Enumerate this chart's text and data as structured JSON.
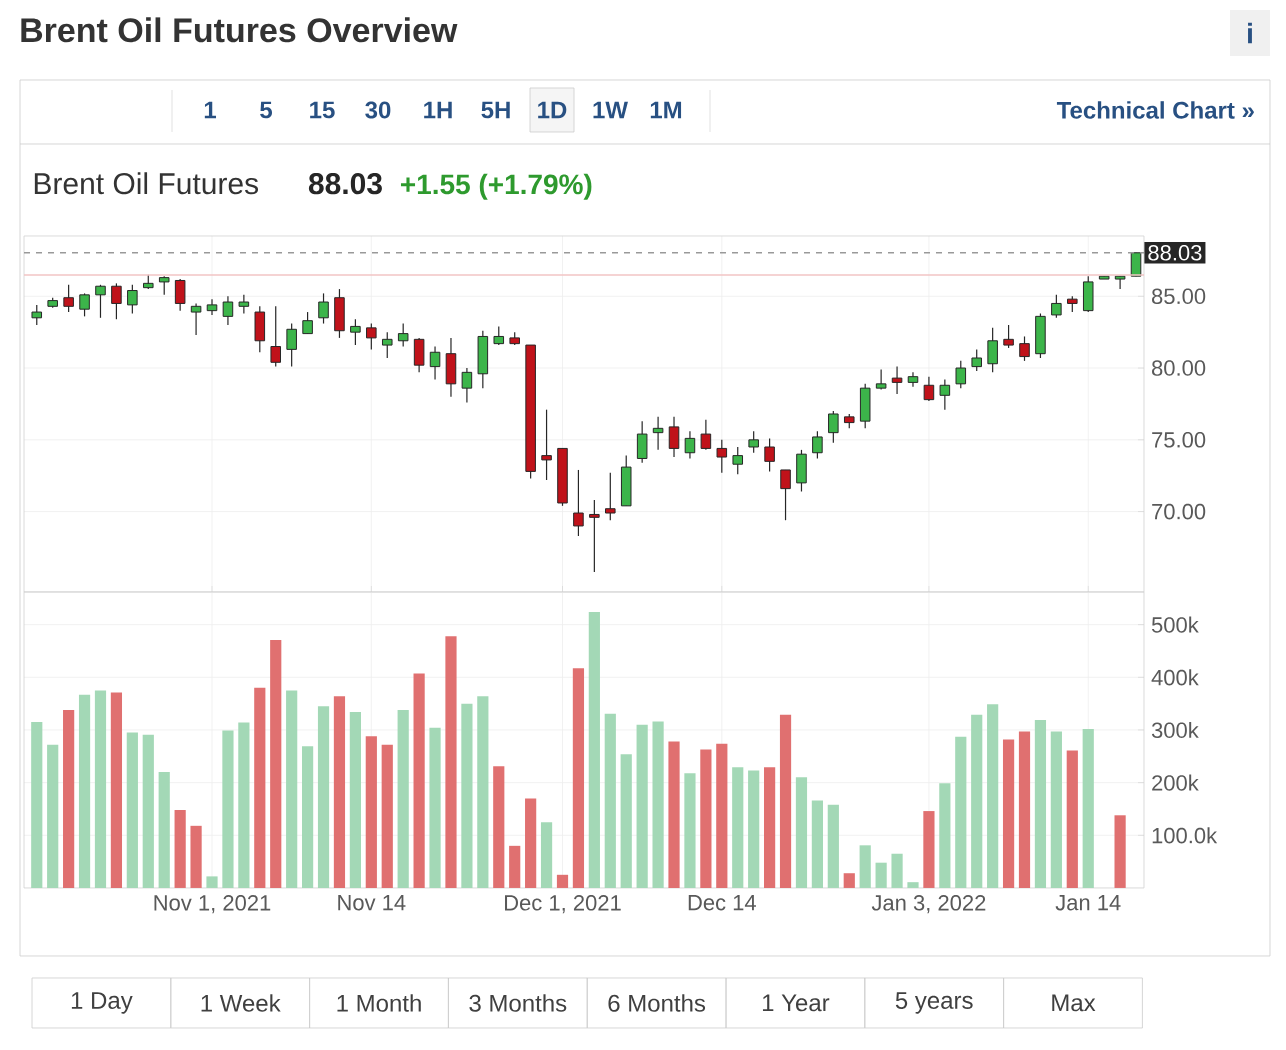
{
  "chart_data": [
    {
      "type": "candlestick",
      "title": "Brent Oil Futures Overview",
      "subtitle": "Brent Oil Futures",
      "annotations": [
        "88.03",
        "+1.55 (+1.79%)"
      ],
      "categories": [
        null,
        null,
        null,
        null,
        null,
        null,
        null,
        null,
        null,
        null,
        null,
        null,
        null,
        null,
        null,
        null,
        null,
        null,
        null,
        null,
        null,
        null,
        null,
        null,
        null,
        null,
        null,
        null,
        null,
        null,
        null,
        null,
        null,
        null,
        null,
        null,
        null,
        null,
        null,
        null,
        null,
        null,
        null,
        null,
        null,
        null,
        null,
        null,
        null,
        null,
        null,
        null,
        null,
        null,
        null,
        null,
        null,
        null,
        null,
        null,
        null,
        null,
        null,
        null,
        null,
        null,
        null,
        null,
        null,
        null
      ],
      "ohlc": [
        [
          83.5,
          84.4,
          83.0,
          83.9
        ],
        [
          84.3,
          84.9,
          84.2,
          84.7
        ],
        [
          84.9,
          85.8,
          83.9,
          84.3
        ],
        [
          84.1,
          85.2,
          83.6,
          85.1
        ],
        [
          85.1,
          85.8,
          83.5,
          85.7
        ],
        [
          85.7,
          85.9,
          83.4,
          84.5
        ],
        [
          84.4,
          85.8,
          83.8,
          85.4
        ],
        [
          85.6,
          86.5,
          85.5,
          85.9
        ],
        [
          86.0,
          86.4,
          85.1,
          86.3
        ],
        [
          86.1,
          86.2,
          84.0,
          84.5
        ],
        [
          83.9,
          84.5,
          82.3,
          84.3
        ],
        [
          84.0,
          84.8,
          83.7,
          84.4
        ],
        [
          83.6,
          85.0,
          83.0,
          84.6
        ],
        [
          84.3,
          85.1,
          83.8,
          84.6
        ],
        [
          83.9,
          84.3,
          81.1,
          81.9
        ],
        [
          81.5,
          84.3,
          80.1,
          80.4
        ],
        [
          81.3,
          83.1,
          80.1,
          82.7
        ],
        [
          82.4,
          83.9,
          82.4,
          83.3
        ],
        [
          83.5,
          85.2,
          83.1,
          84.6
        ],
        [
          84.9,
          85.5,
          82.1,
          82.6
        ],
        [
          82.5,
          83.4,
          81.6,
          82.9
        ],
        [
          82.8,
          83.1,
          81.3,
          82.1
        ],
        [
          81.6,
          82.5,
          80.7,
          82.0
        ],
        [
          81.9,
          83.1,
          81.5,
          82.4
        ],
        [
          82.0,
          82.1,
          79.7,
          80.2
        ],
        [
          80.1,
          81.5,
          79.2,
          81.1
        ],
        [
          81.0,
          82.1,
          78.0,
          78.9
        ],
        [
          78.6,
          80.0,
          77.6,
          79.7
        ],
        [
          79.6,
          82.6,
          78.6,
          82.2
        ],
        [
          81.7,
          82.9,
          81.6,
          82.2
        ],
        [
          82.1,
          82.5,
          81.6,
          81.7
        ],
        [
          81.6,
          81.6,
          72.3,
          72.8
        ],
        [
          73.9,
          77.1,
          72.2,
          73.6
        ],
        [
          74.4,
          74.4,
          70.4,
          70.6
        ],
        [
          69.9,
          72.9,
          68.3,
          69.0
        ],
        [
          69.8,
          70.8,
          65.8,
          69.6
        ],
        [
          70.2,
          72.7,
          69.4,
          69.9
        ],
        [
          70.4,
          73.9,
          70.4,
          73.1
        ],
        [
          73.7,
          76.3,
          73.4,
          75.4
        ],
        [
          75.5,
          76.6,
          74.3,
          75.8
        ],
        [
          75.9,
          76.6,
          73.8,
          74.4
        ],
        [
          74.1,
          75.6,
          73.7,
          75.1
        ],
        [
          75.4,
          76.4,
          74.3,
          74.4
        ],
        [
          74.4,
          75.0,
          72.7,
          73.8
        ],
        [
          73.3,
          74.5,
          72.6,
          73.9
        ],
        [
          74.5,
          75.6,
          74.1,
          75.0
        ],
        [
          74.5,
          75.1,
          72.8,
          73.5
        ],
        [
          72.9,
          72.9,
          69.4,
          71.6
        ],
        [
          72.0,
          74.3,
          71.4,
          74.0
        ],
        [
          74.1,
          75.6,
          73.7,
          75.2
        ],
        [
          75.5,
          77.0,
          74.8,
          76.8
        ],
        [
          76.6,
          76.8,
          75.8,
          76.2
        ],
        [
          76.3,
          78.9,
          75.8,
          78.6
        ],
        [
          78.6,
          79.9,
          78.5,
          78.9
        ],
        [
          79.3,
          80.1,
          78.2,
          79.0
        ],
        [
          79.0,
          79.7,
          78.7,
          79.4
        ],
        [
          78.8,
          79.4,
          77.7,
          77.8
        ],
        [
          78.1,
          79.2,
          77.1,
          78.8
        ],
        [
          78.9,
          80.5,
          78.6,
          80.0
        ],
        [
          80.1,
          81.3,
          79.8,
          80.7
        ],
        [
          80.3,
          82.8,
          79.7,
          81.9
        ],
        [
          82.0,
          83.0,
          81.4,
          81.6
        ],
        [
          81.7,
          82.2,
          80.5,
          80.8
        ],
        [
          81.0,
          83.8,
          80.7,
          83.6
        ],
        [
          83.7,
          85.1,
          83.5,
          84.5
        ],
        [
          84.8,
          85.0,
          83.9,
          84.5
        ],
        [
          84.0,
          86.4,
          83.9,
          86.0
        ],
        [
          86.2,
          86.4,
          86.2,
          86.4
        ],
        [
          86.2,
          86.4,
          85.5,
          86.4
        ],
        [
          86.4,
          88.03,
          86.4,
          88.03
        ]
      ],
      "colors": [
        "#3cb54a",
        "#3cb54a",
        "#c0121a",
        "#3cb54a",
        "#3cb54a",
        "#c0121a",
        "#3cb54a",
        "#3cb54a",
        "#3cb54a",
        "#c0121a",
        "#3cb54a",
        "#3cb54a",
        "#3cb54a",
        "#3cb54a",
        "#c0121a",
        "#c0121a",
        "#3cb54a",
        "#3cb54a",
        "#3cb54a",
        "#c0121a",
        "#3cb54a",
        "#c0121a",
        "#3cb54a",
        "#3cb54a",
        "#c0121a",
        "#3cb54a",
        "#c0121a",
        "#3cb54a",
        "#3cb54a",
        "#3cb54a",
        "#c0121a",
        "#c0121a",
        "#c0121a",
        "#c0121a",
        "#c0121a",
        "#c0121a",
        "#c0121a",
        "#3cb54a",
        "#3cb54a",
        "#3cb54a",
        "#c0121a",
        "#3cb54a",
        "#c0121a",
        "#c0121a",
        "#3cb54a",
        "#3cb54a",
        "#c0121a",
        "#c0121a",
        "#3cb54a",
        "#3cb54a",
        "#3cb54a",
        "#c0121a",
        "#3cb54a",
        "#3cb54a",
        "#c0121a",
        "#3cb54a",
        "#c0121a",
        "#3cb54a",
        "#3cb54a",
        "#3cb54a",
        "#3cb54a",
        "#c0121a",
        "#c0121a",
        "#3cb54a",
        "#3cb54a",
        "#c0121a",
        "#3cb54a",
        "#3cb54a",
        "#3cb54a",
        "#3cb54a"
      ],
      "ylim": [
        64.4,
        89.2
      ],
      "yticks": [
        {
          "value": 70,
          "label": "70.00"
        },
        {
          "value": 75,
          "label": "75.00"
        },
        {
          "value": 80,
          "label": "80.00"
        },
        {
          "value": 85,
          "label": "85.00"
        }
      ],
      "ref_lines": [
        {
          "axis": "y",
          "value": 88.03,
          "label": "88.03",
          "color": "#999999",
          "line_style": "dashed"
        },
        {
          "axis": "y",
          "value": 86.48,
          "color": "#f2c4c4",
          "line_style": "solid"
        }
      ],
      "grid": true,
      "tick_labels": "y"
    },
    {
      "type": "bar",
      "categories": [
        null,
        null,
        null,
        null,
        null,
        null,
        null,
        null,
        null,
        null,
        null,
        "Nov 1, 2021",
        null,
        null,
        null,
        null,
        null,
        null,
        null,
        null,
        null,
        "Nov 14",
        null,
        null,
        null,
        null,
        null,
        null,
        null,
        null,
        null,
        null,
        null,
        "Dec 1, 2021",
        null,
        null,
        null,
        null,
        null,
        null,
        null,
        null,
        null,
        "Dec 14",
        null,
        null,
        null,
        null,
        null,
        null,
        null,
        null,
        null,
        null,
        null,
        null,
        "Jan 3, 2022",
        null,
        null,
        null,
        null,
        null,
        null,
        null,
        null,
        null,
        "Jan 14",
        null,
        null,
        null
      ],
      "values": [
        315000,
        272000,
        338000,
        367000,
        375000,
        371000,
        295000,
        291000,
        220000,
        148000,
        118000,
        22000,
        299000,
        314000,
        380000,
        471000,
        375000,
        269000,
        345000,
        364000,
        334000,
        288000,
        272000,
        338000,
        407000,
        304000,
        478000,
        350000,
        364000,
        231000,
        80000,
        170000,
        125000,
        25000,
        417000,
        524000,
        331000,
        254000,
        310000,
        316000,
        278000,
        218000,
        263000,
        274000,
        229000,
        223000,
        229000,
        329000,
        210000,
        166000,
        158000,
        28000,
        81000,
        48000,
        65000,
        11000,
        146000,
        199000,
        287000,
        329000,
        349000,
        282000,
        297000,
        319000,
        297000,
        261000,
        302000,
        null,
        138000,
        null
      ],
      "colors": [
        "#a3d8b6",
        "#a3d8b6",
        "#e07070",
        "#a3d8b6",
        "#a3d8b6",
        "#e07070",
        "#a3d8b6",
        "#a3d8b6",
        "#a3d8b6",
        "#e07070",
        "#e07070",
        "#a3d8b6",
        "#a3d8b6",
        "#a3d8b6",
        "#e07070",
        "#e07070",
        "#a3d8b6",
        "#a3d8b6",
        "#a3d8b6",
        "#e07070",
        "#a3d8b6",
        "#e07070",
        "#e07070",
        "#a3d8b6",
        "#e07070",
        "#a3d8b6",
        "#e07070",
        "#a3d8b6",
        "#a3d8b6",
        "#e07070",
        "#e07070",
        "#e07070",
        "#a3d8b6",
        "#e07070",
        "#e07070",
        "#a3d8b6",
        "#a3d8b6",
        "#a3d8b6",
        "#a3d8b6",
        "#a3d8b6",
        "#e07070",
        "#a3d8b6",
        "#e07070",
        "#e07070",
        "#a3d8b6",
        "#a3d8b6",
        "#e07070",
        "#e07070",
        "#a3d8b6",
        "#a3d8b6",
        "#a3d8b6",
        "#e07070",
        "#a3d8b6",
        "#a3d8b6",
        "#a3d8b6",
        "#a3d8b6",
        "#e07070",
        "#a3d8b6",
        "#a3d8b6",
        "#a3d8b6",
        "#a3d8b6",
        "#e07070",
        "#e07070",
        "#a3d8b6",
        "#a3d8b6",
        "#e07070",
        "#a3d8b6",
        "#a3d8b6",
        "#e07070",
        "#a3d8b6"
      ],
      "ylim": [
        0,
        562000
      ],
      "yticks": [
        {
          "value": 100000,
          "label": "100.0k"
        },
        {
          "value": 200000,
          "label": "200k"
        },
        {
          "value": 300000,
          "label": "300k"
        },
        {
          "value": 400000,
          "label": "400k"
        },
        {
          "value": 500000,
          "label": "500k"
        }
      ],
      "grid": true
    },
    {
      "type": "other",
      "annotations": [
        "1",
        "5",
        "15",
        "30",
        "1H",
        "5H",
        "1D",
        "1W",
        "1M",
        "Technical Chart »",
        "1 Day",
        "1 Week",
        "1 Month",
        "3 Months",
        "6 Months",
        "1 Year",
        "5 years",
        "Max",
        "i"
      ]
    }
  ]
}
